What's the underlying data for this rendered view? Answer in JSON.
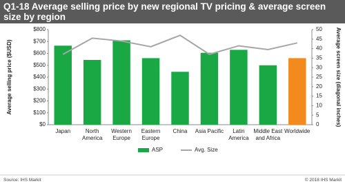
{
  "chart_data": {
    "type": "bar",
    "title": "Q1-18 Average selling price by new regional TV pricing & average screen size by region",
    "categories": [
      "Japan",
      "North America",
      "Western Europe",
      "Eastern Europe",
      "China",
      "Asia Pacific",
      "Latin America",
      "Middle East and Africa",
      "Worldwide"
    ],
    "series": [
      {
        "name": "ASP",
        "type": "bar",
        "color": "#1aa845",
        "colors": [
          "#1aa845",
          "#1aa845",
          "#1aa845",
          "#1aa845",
          "#1aa845",
          "#1aa845",
          "#1aa845",
          "#1aa845",
          "#f28a1e"
        ],
        "values": [
          665,
          545,
          710,
          560,
          445,
          605,
          630,
          500,
          560
        ]
      },
      {
        "name": "Avg. Size",
        "type": "line",
        "axis": "y2",
        "color": "#a6a6a6",
        "values": [
          37,
          45.5,
          44,
          41,
          47,
          37,
          41.5,
          39.5,
          43
        ]
      }
    ],
    "ylabel": "Average selling price ($USD)",
    "y2label": "Average screen size (diagonal inches)",
    "ylim": [
      0,
      800
    ],
    "yticks": [
      {
        "value": 0,
        "label": "$0"
      },
      {
        "value": 100,
        "label": "$100"
      },
      {
        "value": 200,
        "label": "$200"
      },
      {
        "value": 300,
        "label": "$300"
      },
      {
        "value": 400,
        "label": "$400"
      },
      {
        "value": 500,
        "label": "$500"
      },
      {
        "value": 600,
        "label": "$600"
      },
      {
        "value": 700,
        "label": "$700"
      },
      {
        "value": 800,
        "label": "$800"
      }
    ],
    "y2lim": [
      0,
      50
    ],
    "y2ticks": [
      0,
      5,
      10,
      15,
      20,
      25,
      30,
      35,
      40,
      45,
      50
    ],
    "legend": "bottom",
    "source": "Source: IHS Markit",
    "copyright": "© 2018 IHS Markit"
  }
}
